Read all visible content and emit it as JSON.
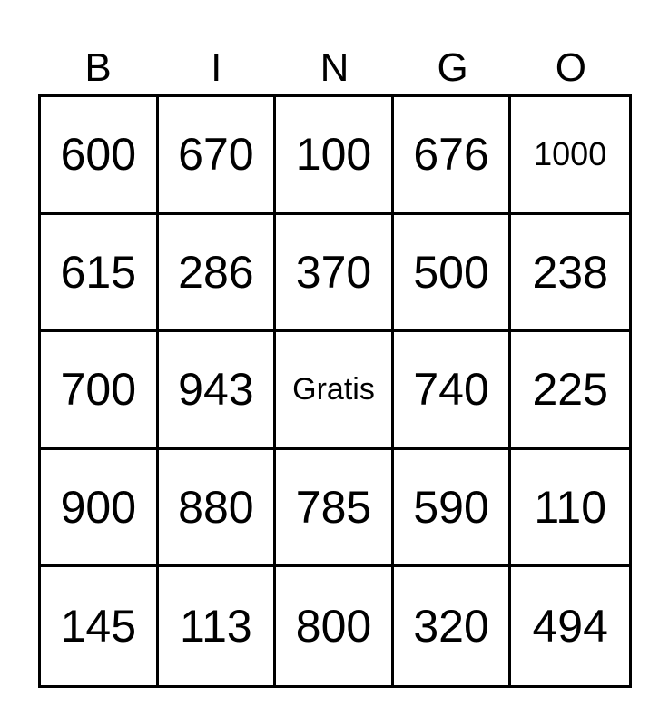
{
  "header": [
    "B",
    "I",
    "N",
    "G",
    "O"
  ],
  "cells": [
    [
      "600",
      "670",
      "100",
      "676",
      "1000"
    ],
    [
      "615",
      "286",
      "370",
      "500",
      "238"
    ],
    [
      "700",
      "943",
      "Gratis",
      "740",
      "225"
    ],
    [
      "900",
      "880",
      "785",
      "590",
      "110"
    ],
    [
      "145",
      "113",
      "800",
      "320",
      "494"
    ]
  ]
}
